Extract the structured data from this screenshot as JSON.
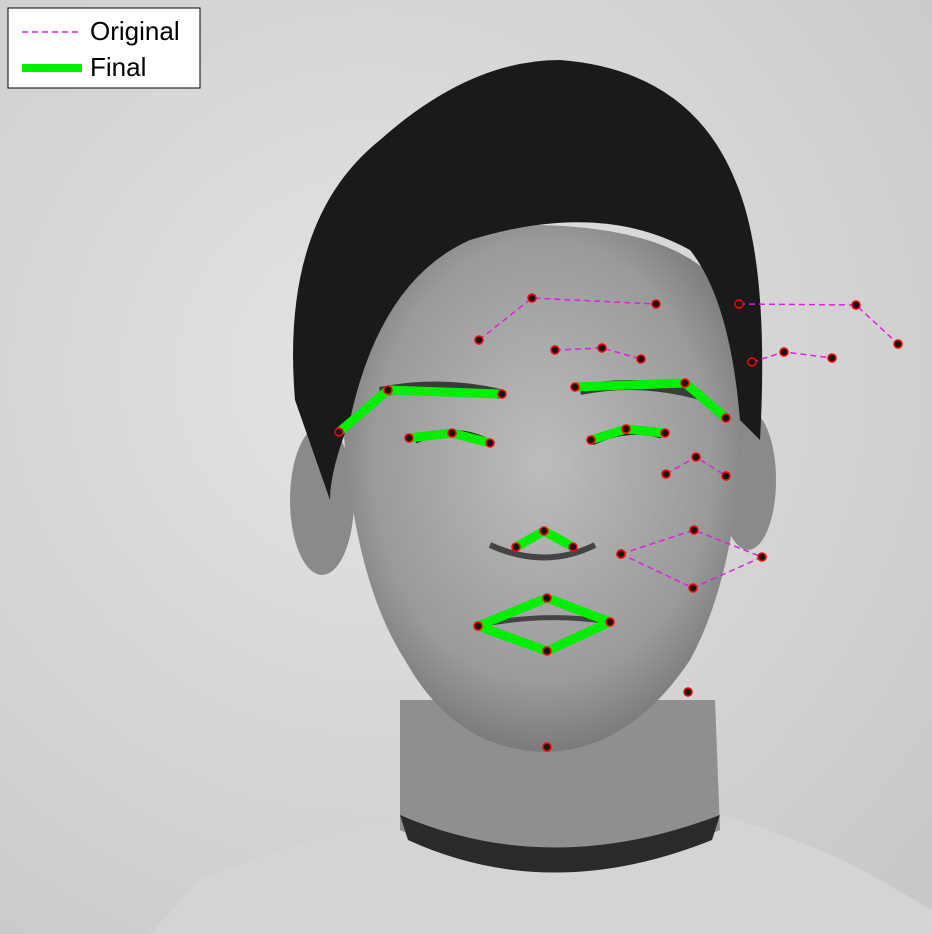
{
  "legend": {
    "items": [
      {
        "label": "Original"
      },
      {
        "label": "Final"
      }
    ]
  }
}
